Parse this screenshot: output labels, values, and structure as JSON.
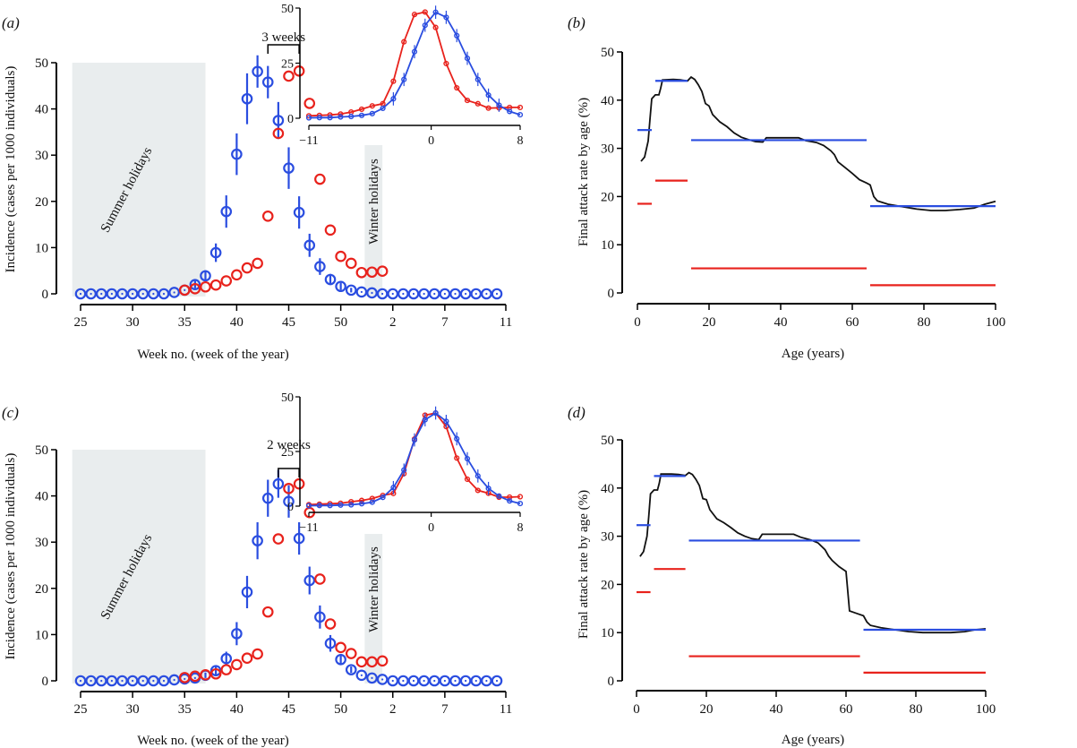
{
  "colors": {
    "blue": "#2a4de0",
    "red": "#e8221c",
    "black": "#111111",
    "shade": "#e9edee"
  },
  "chart_data": [
    {
      "panel": "(a)",
      "type": "scatter",
      "xlabel": "Week no. (week of the year)",
      "ylabel": "Incidence (cases per 1000 individuals)",
      "ylim": [
        0,
        50
      ],
      "yticks": [
        0,
        10,
        20,
        30,
        40,
        50
      ],
      "xtick_labels": [
        "25",
        "30",
        "35",
        "40",
        "45",
        "50",
        "2",
        "7",
        "11"
      ],
      "xtick_index": [
        0,
        5,
        10,
        15,
        20,
        25,
        30,
        35,
        40
      ],
      "index_range": [
        0,
        40
      ],
      "shaded": [
        {
          "label": "Summer holidays",
          "from_index": -0.8,
          "to_index": 12
        },
        {
          "label": "Winter holidays",
          "from_index": 27.3,
          "to_index": 29
        }
      ],
      "annotation": {
        "text": "3 weeks",
        "from_index": 18,
        "to_index": 21
      },
      "series": [
        {
          "name": "blue",
          "start_index": 0,
          "values": [
            0,
            0,
            0,
            0,
            0,
            0,
            0,
            0,
            0,
            0.3,
            0.8,
            2.0,
            3.9,
            8.9,
            17.8,
            30.2,
            42.2,
            48.1,
            45.8,
            37.5,
            27.2,
            17.6,
            10.5,
            5.9,
            3.1,
            1.6,
            0.8,
            0.4,
            0.2,
            0,
            0,
            0,
            0,
            0,
            0,
            0,
            0,
            0,
            0,
            0,
            0
          ],
          "err": [
            0,
            0,
            0,
            0,
            0,
            0,
            0,
            0,
            0,
            0.2,
            0.4,
            0.8,
            1.2,
            2.0,
            3.5,
            4.5,
            5.5,
            3.5,
            3.5,
            4.0,
            4.5,
            3.5,
            2.5,
            1.8,
            1.2,
            0.8,
            0.5,
            0.3,
            0.2,
            0,
            0,
            0,
            0,
            0,
            0,
            0,
            0,
            0,
            0,
            0,
            0
          ]
        },
        {
          "name": "red",
          "start_index": 10,
          "values": [
            0.8,
            1.1,
            1.5,
            1.9,
            2.8,
            4.1,
            5.6,
            6.6,
            16.8,
            34.7,
            47.1,
            48.2,
            41.2,
            24.8,
            13.8,
            8.1,
            6.6,
            4.6,
            4.7,
            4.9
          ]
        }
      ],
      "inset": {
        "xlim": [
          -11,
          8
        ],
        "ylim": [
          0,
          50
        ],
        "xticks": [
          -11,
          0,
          8
        ],
        "yticks": [
          0,
          25,
          50
        ],
        "blue": [
          0.2,
          0.3,
          0.3,
          0.6,
          0.8,
          1.3,
          2.1,
          4.5,
          8.8,
          17.6,
          30.2,
          42.2,
          48.1,
          45.8,
          37.5,
          27.2,
          17.6,
          10.5,
          5.9,
          3.1,
          1.6
        ],
        "red": [
          1.1,
          1.3,
          1.5,
          1.9,
          2.8,
          4.1,
          5.6,
          6.6,
          16.8,
          34.7,
          47.1,
          48.2,
          41.2,
          24.8,
          13.8,
          8.1,
          6.6,
          4.6,
          4.7,
          4.9,
          4.9
        ]
      }
    },
    {
      "panel": "(b)",
      "type": "line",
      "xlabel": "Age (years)",
      "ylabel": "Final attack rate by age (%)",
      "xlim": [
        0,
        100
      ],
      "ylim": [
        0,
        50
      ],
      "xticks": [
        0,
        20,
        40,
        60,
        80,
        100
      ],
      "yticks": [
        0,
        10,
        20,
        30,
        40,
        50
      ],
      "curve": [
        [
          1,
          27.3
        ],
        [
          2,
          28.2
        ],
        [
          3,
          31.5
        ],
        [
          3.5,
          36
        ],
        [
          4,
          40.3
        ],
        [
          5,
          41.1
        ],
        [
          6,
          41.1
        ],
        [
          6.5,
          42.5
        ],
        [
          7,
          44.2
        ],
        [
          10,
          44.3
        ],
        [
          12,
          44.2
        ],
        [
          14,
          44
        ],
        [
          15,
          44.8
        ],
        [
          16,
          44.3
        ],
        [
          17,
          43.2
        ],
        [
          18,
          41.8
        ],
        [
          19,
          39.3
        ],
        [
          20,
          38.8
        ],
        [
          21,
          37
        ],
        [
          23,
          35.5
        ],
        [
          25,
          34.5
        ],
        [
          27,
          33.2
        ],
        [
          29,
          32.3
        ],
        [
          31,
          31.8
        ],
        [
          33,
          31.4
        ],
        [
          35,
          31.3
        ],
        [
          36,
          32.2
        ],
        [
          40,
          32.2
        ],
        [
          45,
          32.2
        ],
        [
          47,
          31.6
        ],
        [
          50,
          31.2
        ],
        [
          52,
          30.6
        ],
        [
          54,
          29.5
        ],
        [
          55,
          28.7
        ],
        [
          56,
          27.2
        ],
        [
          58,
          26
        ],
        [
          60,
          24.8
        ],
        [
          62,
          23.5
        ],
        [
          64,
          22.8
        ],
        [
          65,
          22.4
        ],
        [
          66,
          20
        ],
        [
          67,
          19.1
        ],
        [
          70,
          18.4
        ],
        [
          74,
          17.9
        ],
        [
          78,
          17.4
        ],
        [
          82,
          17.1
        ],
        [
          86,
          17.1
        ],
        [
          90,
          17.3
        ],
        [
          94,
          17.6
        ],
        [
          97,
          18.4
        ],
        [
          100,
          19
        ]
      ],
      "segments_blue": [
        [
          0,
          4,
          33.8
        ],
        [
          5,
          14,
          44
        ],
        [
          15,
          64,
          31.7
        ],
        [
          65,
          100,
          18
        ]
      ],
      "segments_red": [
        [
          0,
          4,
          18.5
        ],
        [
          5,
          14,
          23.3
        ],
        [
          15,
          64,
          5.1
        ],
        [
          65,
          100,
          1.6
        ]
      ]
    },
    {
      "panel": "(c)",
      "type": "scatter",
      "xlabel": "Week no. (week of the year)",
      "ylabel": "Incidence (cases per 1000 individuals)",
      "ylim": [
        0,
        50
      ],
      "yticks": [
        0,
        10,
        20,
        30,
        40,
        50
      ],
      "xtick_labels": [
        "25",
        "30",
        "35",
        "40",
        "45",
        "50",
        "2",
        "7",
        "11"
      ],
      "xtick_index": [
        0,
        5,
        10,
        15,
        20,
        25,
        30,
        35,
        40
      ],
      "index_range": [
        0,
        40
      ],
      "shaded": [
        {
          "label": "Summer holidays",
          "from_index": -0.8,
          "to_index": 12
        },
        {
          "label": "Winter holidays",
          "from_index": 27.3,
          "to_index": 29
        }
      ],
      "annotation": {
        "text": "2 weeks",
        "from_index": 19,
        "to_index": 21
      },
      "series": [
        {
          "name": "blue",
          "start_index": 0,
          "values": [
            0,
            0,
            0,
            0,
            0,
            0,
            0,
            0,
            0,
            0.2,
            0.4,
            0.6,
            1.2,
            2.2,
            4.8,
            10.2,
            19.2,
            30.3,
            39.5,
            42.6,
            38.8,
            30.8,
            21.7,
            13.8,
            8.1,
            4.6,
            2.4,
            1.2,
            0.6,
            0.3,
            0,
            0,
            0,
            0,
            0,
            0,
            0,
            0,
            0,
            0,
            0
          ],
          "err": [
            0,
            0,
            0,
            0,
            0,
            0,
            0,
            0,
            0,
            0.1,
            0.2,
            0.3,
            0.6,
            1.0,
            1.5,
            2.5,
            3.5,
            4.0,
            4.0,
            3.0,
            3.5,
            3.5,
            3.0,
            2.5,
            1.8,
            1.2,
            0.7,
            0.4,
            0.2,
            0,
            0,
            0,
            0,
            0,
            0,
            0,
            0,
            0,
            0,
            0,
            0
          ]
        },
        {
          "name": "red",
          "start_index": 10,
          "values": [
            0.7,
            1.0,
            1.3,
            1.5,
            2.4,
            3.5,
            4.9,
            5.8,
            14.9,
            30.7,
            41.6,
            42.6,
            36.4,
            22,
            12.3,
            7.2,
            5.9,
            4.1,
            4.1,
            4.3
          ]
        }
      ],
      "inset": {
        "xlim": [
          -11,
          8
        ],
        "ylim": [
          0,
          50
        ],
        "xticks": [
          -11,
          0,
          8
        ],
        "yticks": [
          0,
          25,
          50
        ],
        "blue": [
          0.2,
          0.3,
          0.3,
          0.5,
          0.6,
          1.1,
          1.8,
          4.0,
          8.5,
          16.5,
          30.3,
          39.5,
          42.6,
          38.8,
          30.8,
          21.7,
          13.8,
          8.1,
          4.6,
          2.4,
          1.2
        ],
        "red": [
          0.7,
          0.9,
          1.1,
          1.3,
          2.0,
          2.6,
          3.5,
          4.9,
          5.8,
          14.9,
          30.7,
          41.6,
          42.6,
          36.4,
          22,
          12.3,
          7.2,
          5.9,
          4.1,
          4.1,
          4.3
        ]
      }
    },
    {
      "panel": "(d)",
      "type": "line",
      "xlabel": "Age (years)",
      "ylabel": "Final attack rate by age (%)",
      "xlim": [
        0,
        100
      ],
      "ylim": [
        0,
        50
      ],
      "xticks": [
        0,
        20,
        40,
        60,
        80,
        100
      ],
      "yticks": [
        0,
        10,
        20,
        30,
        40,
        50
      ],
      "curve": [
        [
          1,
          25.8
        ],
        [
          2,
          26.8
        ],
        [
          3,
          30
        ],
        [
          3.5,
          34
        ],
        [
          4,
          38.8
        ],
        [
          5,
          39.6
        ],
        [
          6,
          39.6
        ],
        [
          6.5,
          41
        ],
        [
          7,
          42.9
        ],
        [
          10,
          42.9
        ],
        [
          12,
          42.8
        ],
        [
          14,
          42.6
        ],
        [
          15,
          43.2
        ],
        [
          16,
          42.8
        ],
        [
          17,
          41.8
        ],
        [
          18,
          40.5
        ],
        [
          19,
          37.8
        ],
        [
          20,
          37.6
        ],
        [
          21,
          35.5
        ],
        [
          23,
          33.6
        ],
        [
          25,
          32.8
        ],
        [
          27,
          31.8
        ],
        [
          29,
          30.7
        ],
        [
          31,
          30
        ],
        [
          33,
          29.5
        ],
        [
          35,
          29.3
        ],
        [
          36,
          30.4
        ],
        [
          40,
          30.4
        ],
        [
          45,
          30.4
        ],
        [
          47,
          29.8
        ],
        [
          50,
          29.2
        ],
        [
          52,
          28.6
        ],
        [
          54,
          27.2
        ],
        [
          55,
          25.9
        ],
        [
          56,
          25
        ],
        [
          58,
          23.7
        ],
        [
          60,
          22.7
        ],
        [
          61,
          14.5
        ],
        [
          63,
          14
        ],
        [
          65,
          13.5
        ],
        [
          66,
          12.2
        ],
        [
          67,
          11.5
        ],
        [
          70,
          11
        ],
        [
          74,
          10.6
        ],
        [
          78,
          10.2
        ],
        [
          82,
          10
        ],
        [
          86,
          10
        ],
        [
          90,
          10
        ],
        [
          94,
          10.2
        ],
        [
          97,
          10.6
        ],
        [
          100,
          10.8
        ]
      ],
      "segments_blue": [
        [
          0,
          4,
          32.3
        ],
        [
          5,
          14,
          42.5
        ],
        [
          15,
          64,
          29.1
        ],
        [
          65,
          100,
          10.6
        ]
      ],
      "segments_red": [
        [
          0,
          4,
          18.4
        ],
        [
          5,
          14,
          23.2
        ],
        [
          15,
          64,
          5.1
        ],
        [
          65,
          100,
          1.7
        ]
      ]
    }
  ]
}
